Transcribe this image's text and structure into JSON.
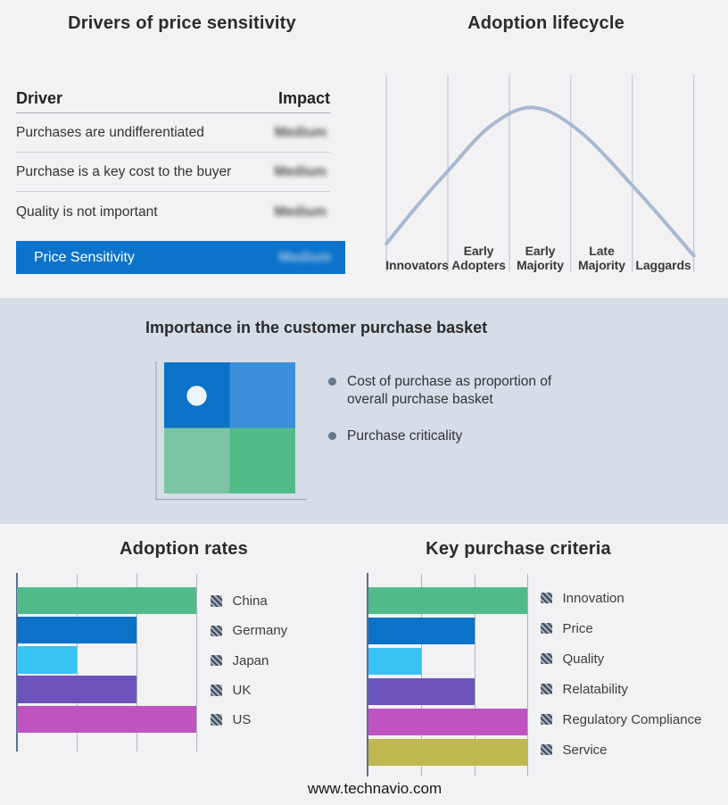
{
  "page": {
    "background": "#f2f2f4",
    "band_background": "#d5dde7",
    "footer": "www.technavio.com"
  },
  "price_table": {
    "title": "Drivers of price sensitivity",
    "col_driver": "Driver",
    "col_impact": "Impact",
    "rows": [
      {
        "driver": "Purchases are undifferentiated",
        "impact": "Medium"
      },
      {
        "driver": "Purchase is a key cost to the buyer",
        "impact": "Medium"
      },
      {
        "driver": "Quality is not important",
        "impact": "Medium"
      }
    ],
    "summary": {
      "label": "Price Sensitivity",
      "impact": "Medium"
    },
    "accent_color": "#0c73ca"
  },
  "basket": {
    "title": "Importance in the customer purchase basket",
    "bullets": [
      "Cost of purchase as proportion of overall purchase basket",
      "Purchase criticality"
    ],
    "quadrant_colors": [
      "#0b72c8",
      "#3a8fd8",
      "#7ac4a4",
      "#52bb8a"
    ],
    "marker_color": "#edf3fa",
    "marker_quadrant": "top-left"
  },
  "chart_data": [
    {
      "id": "adoption-lifecycle",
      "type": "line",
      "title": "Adoption lifecycle",
      "x_categories": [
        "Innovators",
        "Early Adopters",
        "Early Majority",
        "Late Majority",
        "Laggards"
      ],
      "shape": "bell-curve",
      "points_norm": [
        [
          0,
          0.1
        ],
        [
          0.1,
          0.35
        ],
        [
          0.2,
          0.58
        ],
        [
          0.34,
          0.88
        ],
        [
          0.478,
          1.0
        ],
        [
          0.63,
          0.84
        ],
        [
          0.82,
          0.44
        ],
        [
          1,
          0.02
        ]
      ],
      "line_color": "#a7b9d2",
      "grid": true,
      "legend_position": "none"
    },
    {
      "id": "adoption-rates",
      "type": "bar",
      "orientation": "horizontal",
      "title": "Adoption rates",
      "categories": [
        "China",
        "Germany",
        "Japan",
        "UK",
        "US"
      ],
      "values": [
        3,
        2,
        1,
        2,
        3
      ],
      "xlim": [
        0,
        3
      ],
      "colors": [
        "#52bb8a",
        "#0b72c8",
        "#38c3f5",
        "#6c53bc",
        "#bf53c0"
      ],
      "grid": true,
      "legend_position": "right"
    },
    {
      "id": "key-purchase-criteria",
      "type": "bar",
      "orientation": "horizontal",
      "title": "Key purchase criteria",
      "categories": [
        "Innovation",
        "Price",
        "Quality",
        "Relatability",
        "Regulatory Compliance",
        "Service"
      ],
      "values": [
        3,
        2,
        1,
        2,
        3,
        3
      ],
      "xlim": [
        0,
        3
      ],
      "colors": [
        "#52bb8a",
        "#0b72c8",
        "#38c3f5",
        "#6c53bc",
        "#bf53c0",
        "#bfb750"
      ],
      "grid": true,
      "legend_position": "right"
    }
  ]
}
